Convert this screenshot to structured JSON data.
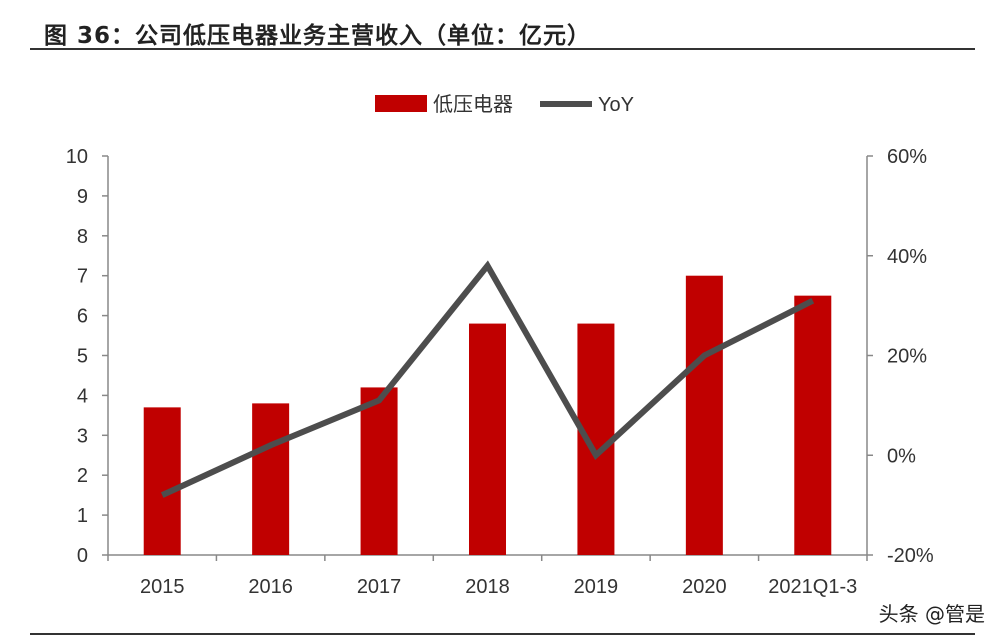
{
  "title": "图 36：公司低压电器业务主营收入（单位：亿元）",
  "watermark": "头条 @管是",
  "chart_data": {
    "type": "bar+line",
    "categories": [
      "2015",
      "2016",
      "2017",
      "2018",
      "2019",
      "2020",
      "2021Q1-3"
    ],
    "series": [
      {
        "name": "低压电器",
        "type": "bar",
        "axis": "left",
        "color": "#c00000",
        "values": [
          3.7,
          3.8,
          4.2,
          5.8,
          5.8,
          7.0,
          6.5
        ]
      },
      {
        "name": "YoY",
        "type": "line",
        "axis": "right",
        "color": "#4d4d4d",
        "values": [
          -8,
          2,
          11,
          38,
          0,
          20,
          31
        ]
      }
    ],
    "left_axis": {
      "range": [
        0,
        10
      ],
      "ticks": [
        "0",
        "1",
        "2",
        "3",
        "4",
        "5",
        "6",
        "7",
        "8",
        "9",
        "10"
      ]
    },
    "right_axis": {
      "range": [
        -20,
        60
      ],
      "unit": "%",
      "ticks": [
        "-20%",
        "0%",
        "20%",
        "40%",
        "60%"
      ]
    },
    "legend_placement": "top-center",
    "grid": false
  }
}
